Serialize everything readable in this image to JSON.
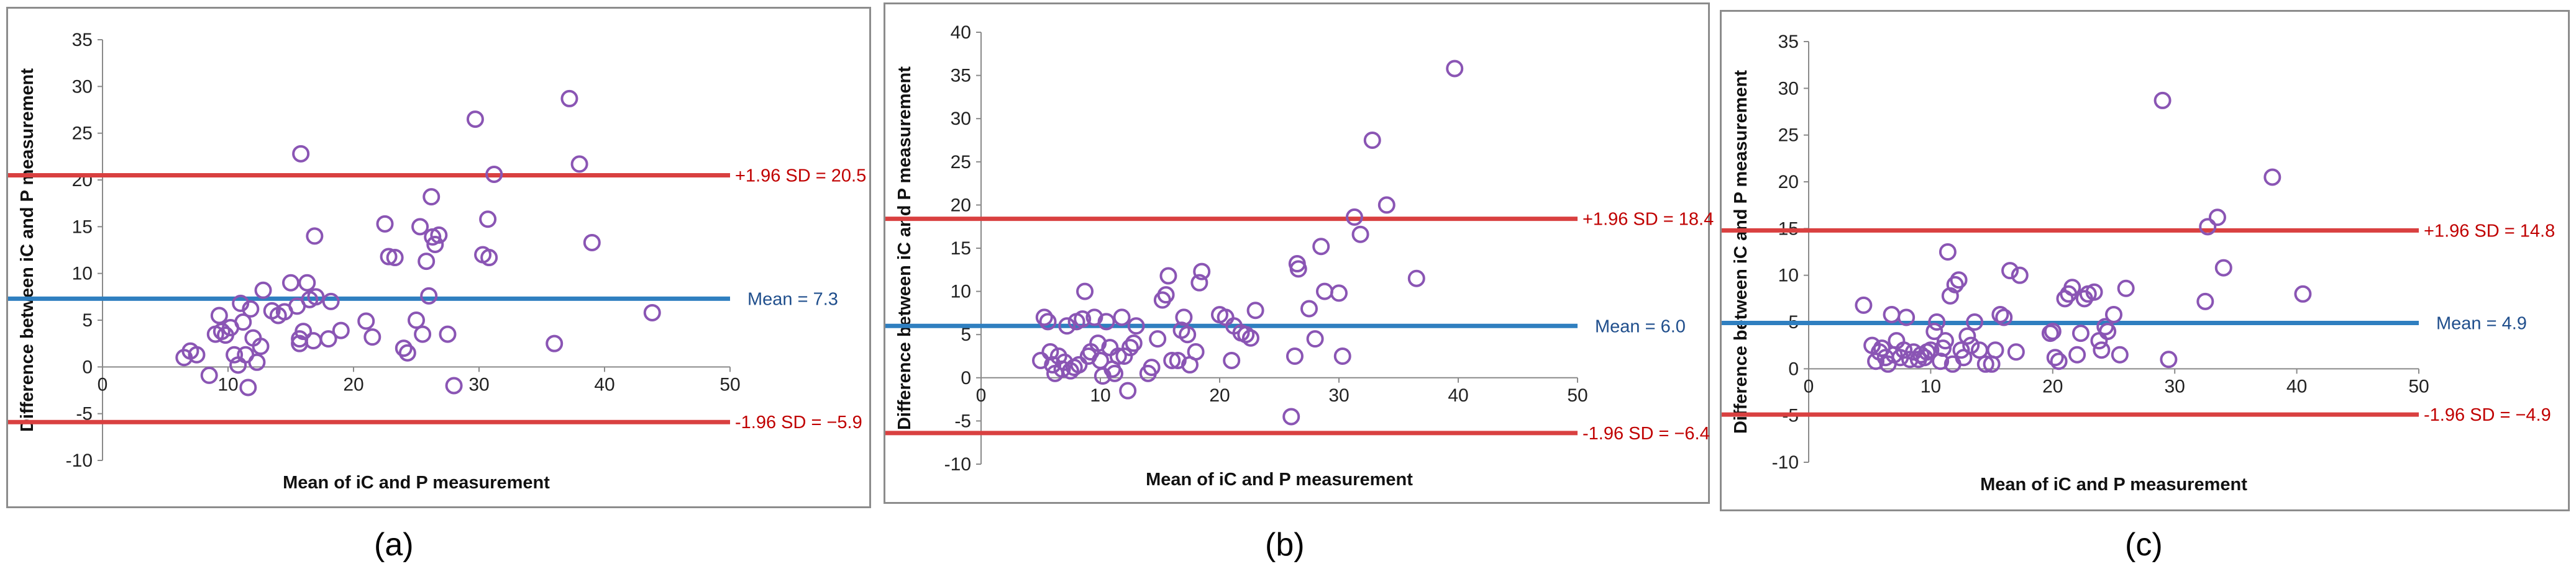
{
  "figure": {
    "captions": [
      "(a)",
      "(b)",
      "(c)"
    ]
  },
  "colors": {
    "points": "#8a55b4",
    "mean_line": "#2f7fc0",
    "limit_line": "#d94040",
    "mean_text": "#1f4e8c",
    "limit_text": "#c00000"
  },
  "chart_data": [
    {
      "type": "scatter",
      "panel": "a",
      "xlabel": "Mean of iC and P measurement",
      "ylabel": "Difference between iC and P measurement",
      "xlim": [
        0,
        50
      ],
      "ylim": [
        -10,
        35
      ],
      "xticks": [
        0,
        10,
        20,
        30,
        40,
        50
      ],
      "yticks": [
        -10,
        -5,
        0,
        5,
        10,
        15,
        20,
        25,
        30,
        35
      ],
      "mean": 7.3,
      "upper_loa": 20.5,
      "lower_loa": -5.9,
      "mean_label": "Mean = 7.3",
      "upper_label": "+1.96 SD = 20.5",
      "lower_label": "-1.96 SD = −5.9",
      "points": [
        [
          6.5,
          1.0
        ],
        [
          7.0,
          1.7
        ],
        [
          7.5,
          1.3
        ],
        [
          8.5,
          -0.9
        ],
        [
          9.0,
          3.5
        ],
        [
          9.3,
          5.5
        ],
        [
          9.5,
          3.8
        ],
        [
          9.8,
          3.4
        ],
        [
          10.2,
          4.2
        ],
        [
          10.5,
          1.3
        ],
        [
          10.8,
          0.2
        ],
        [
          11.0,
          6.8
        ],
        [
          11.2,
          4.8
        ],
        [
          11.4,
          1.3
        ],
        [
          11.6,
          -2.2
        ],
        [
          11.8,
          6.2
        ],
        [
          12.0,
          3.1
        ],
        [
          12.3,
          0.5
        ],
        [
          12.6,
          2.2
        ],
        [
          12.8,
          8.2
        ],
        [
          13.5,
          6.0
        ],
        [
          14.0,
          5.5
        ],
        [
          14.5,
          5.9
        ],
        [
          15.0,
          9.0
        ],
        [
          15.5,
          6.5
        ],
        [
          15.7,
          3.0
        ],
        [
          15.7,
          2.5
        ],
        [
          15.8,
          22.8
        ],
        [
          16.0,
          3.8
        ],
        [
          16.3,
          9.0
        ],
        [
          16.5,
          7.2
        ],
        [
          16.8,
          2.8
        ],
        [
          16.9,
          14.0
        ],
        [
          17.0,
          7.5
        ],
        [
          18.0,
          3.0
        ],
        [
          18.2,
          7.0
        ],
        [
          19.0,
          3.9
        ],
        [
          21.0,
          4.9
        ],
        [
          21.5,
          3.2
        ],
        [
          22.5,
          15.3
        ],
        [
          22.8,
          11.8
        ],
        [
          23.3,
          11.7
        ],
        [
          24.0,
          2.0
        ],
        [
          24.3,
          1.5
        ],
        [
          25.0,
          5.0
        ],
        [
          25.3,
          15.0
        ],
        [
          25.5,
          3.5
        ],
        [
          25.8,
          11.3
        ],
        [
          26.0,
          7.6
        ],
        [
          26.2,
          18.2
        ],
        [
          26.3,
          13.9
        ],
        [
          26.5,
          13.1
        ],
        [
          26.8,
          14.1
        ],
        [
          27.5,
          3.5
        ],
        [
          28.0,
          -2.0
        ],
        [
          29.7,
          26.5
        ],
        [
          30.3,
          12.0
        ],
        [
          30.7,
          15.8
        ],
        [
          30.8,
          11.7
        ],
        [
          31.2,
          20.6
        ],
        [
          36.0,
          2.5
        ],
        [
          37.2,
          28.7
        ],
        [
          38.0,
          21.7
        ],
        [
          39.0,
          13.3
        ],
        [
          43.8,
          5.8
        ]
      ]
    },
    {
      "type": "scatter",
      "panel": "b",
      "xlabel": "Mean of iC and P measurement",
      "ylabel": "Difference between iC and P measurement",
      "xlim": [
        0,
        50
      ],
      "ylim": [
        -10,
        40
      ],
      "xticks": [
        0,
        10,
        20,
        30,
        40,
        50
      ],
      "yticks": [
        -10,
        -5,
        0,
        5,
        10,
        15,
        20,
        25,
        30,
        35,
        40
      ],
      "mean": 6.0,
      "upper_loa": 18.4,
      "lower_loa": -6.4,
      "mean_label": "Mean = 6.0",
      "upper_label": "+1.96 SD = 18.4",
      "lower_label": "-1.96 SD = −6.4",
      "points": [
        [
          5.0,
          2.0
        ],
        [
          5.3,
          7.0
        ],
        [
          5.6,
          6.5
        ],
        [
          5.8,
          3.0
        ],
        [
          6.0,
          1.5
        ],
        [
          6.2,
          0.5
        ],
        [
          6.5,
          2.5
        ],
        [
          6.8,
          1.0
        ],
        [
          7.0,
          1.8
        ],
        [
          7.2,
          6.0
        ],
        [
          7.5,
          0.8
        ],
        [
          7.8,
          1.2
        ],
        [
          8.0,
          6.5
        ],
        [
          8.2,
          1.5
        ],
        [
          8.5,
          6.8
        ],
        [
          8.7,
          10.0
        ],
        [
          9.0,
          2.5
        ],
        [
          9.2,
          3.0
        ],
        [
          9.5,
          7.0
        ],
        [
          9.8,
          4.0
        ],
        [
          10.0,
          2.0
        ],
        [
          10.2,
          0.2
        ],
        [
          10.5,
          6.5
        ],
        [
          10.8,
          3.5
        ],
        [
          11.0,
          1.0
        ],
        [
          11.2,
          0.5
        ],
        [
          11.5,
          2.5
        ],
        [
          11.8,
          7.0
        ],
        [
          12.0,
          2.5
        ],
        [
          12.3,
          -1.5
        ],
        [
          12.5,
          3.5
        ],
        [
          12.8,
          4.0
        ],
        [
          13.0,
          6.0
        ],
        [
          14.0,
          0.5
        ],
        [
          14.3,
          1.2
        ],
        [
          14.8,
          4.5
        ],
        [
          15.2,
          9.0
        ],
        [
          15.5,
          9.6
        ],
        [
          15.7,
          11.8
        ],
        [
          16.0,
          2.0
        ],
        [
          16.5,
          2.0
        ],
        [
          16.8,
          5.5
        ],
        [
          17.0,
          7.0
        ],
        [
          17.3,
          5.0
        ],
        [
          17.5,
          1.5
        ],
        [
          18.0,
          3.0
        ],
        [
          18.3,
          11.0
        ],
        [
          18.5,
          12.3
        ],
        [
          20.0,
          7.3
        ],
        [
          20.5,
          7.0
        ],
        [
          21.0,
          2.0
        ],
        [
          21.2,
          6.0
        ],
        [
          21.8,
          5.2
        ],
        [
          22.2,
          5.0
        ],
        [
          22.6,
          4.6
        ],
        [
          23.0,
          7.8
        ],
        [
          26.0,
          -4.5
        ],
        [
          26.3,
          2.5
        ],
        [
          26.5,
          13.2
        ],
        [
          26.6,
          12.6
        ],
        [
          27.5,
          8.0
        ],
        [
          28.0,
          4.5
        ],
        [
          28.5,
          15.2
        ],
        [
          28.8,
          10.0
        ],
        [
          30.0,
          9.8
        ],
        [
          30.3,
          2.5
        ],
        [
          31.3,
          18.6
        ],
        [
          31.8,
          16.6
        ],
        [
          32.8,
          27.5
        ],
        [
          34.0,
          20.0
        ],
        [
          36.5,
          11.5
        ],
        [
          39.7,
          35.8
        ]
      ]
    },
    {
      "type": "scatter",
      "panel": "c",
      "xlabel": "Mean of iC and P measurement",
      "ylabel": "Difference between iC and P measurement",
      "xlim": [
        0,
        50
      ],
      "ylim": [
        -10,
        35
      ],
      "xticks": [
        0,
        10,
        20,
        30,
        40,
        50
      ],
      "yticks": [
        -10,
        -5,
        0,
        5,
        10,
        15,
        20,
        25,
        30,
        35
      ],
      "mean": 4.9,
      "upper_loa": 14.8,
      "lower_loa": -4.9,
      "mean_label": "Mean = 4.9",
      "upper_label": "+1.96 SD = 14.8",
      "lower_label": "-1.96 SD = −4.9",
      "points": [
        [
          4.5,
          6.8
        ],
        [
          5.2,
          2.5
        ],
        [
          5.5,
          0.8
        ],
        [
          5.8,
          1.8
        ],
        [
          6.0,
          2.2
        ],
        [
          6.3,
          1.2
        ],
        [
          6.5,
          0.5
        ],
        [
          6.8,
          5.8
        ],
        [
          7.0,
          1.5
        ],
        [
          7.2,
          3.0
        ],
        [
          7.5,
          1.2
        ],
        [
          7.8,
          2.0
        ],
        [
          8.0,
          5.5
        ],
        [
          8.3,
          1.0
        ],
        [
          8.6,
          1.8
        ],
        [
          9.0,
          1.0
        ],
        [
          9.2,
          1.5
        ],
        [
          9.5,
          1.2
        ],
        [
          9.7,
          1.8
        ],
        [
          10.0,
          2.0
        ],
        [
          10.3,
          4.0
        ],
        [
          10.5,
          5.0
        ],
        [
          10.8,
          0.8
        ],
        [
          11.0,
          2.2
        ],
        [
          11.2,
          3.0
        ],
        [
          11.4,
          12.5
        ],
        [
          11.6,
          7.8
        ],
        [
          11.8,
          0.5
        ],
        [
          12.0,
          9.0
        ],
        [
          12.3,
          9.5
        ],
        [
          12.5,
          2.0
        ],
        [
          12.7,
          1.2
        ],
        [
          13.0,
          3.5
        ],
        [
          13.3,
          2.5
        ],
        [
          13.6,
          5.0
        ],
        [
          14.0,
          2.0
        ],
        [
          14.5,
          0.5
        ],
        [
          15.0,
          0.5
        ],
        [
          15.3,
          2.0
        ],
        [
          15.7,
          5.8
        ],
        [
          16.0,
          5.5
        ],
        [
          16.5,
          10.5
        ],
        [
          17.0,
          1.8
        ],
        [
          17.3,
          10.0
        ],
        [
          19.8,
          3.8
        ],
        [
          20.0,
          4.0
        ],
        [
          20.2,
          1.2
        ],
        [
          20.5,
          0.8
        ],
        [
          21.0,
          7.5
        ],
        [
          21.3,
          8.0
        ],
        [
          21.6,
          8.7
        ],
        [
          22.0,
          1.5
        ],
        [
          22.3,
          3.8
        ],
        [
          22.6,
          7.5
        ],
        [
          22.9,
          8.0
        ],
        [
          23.4,
          8.2
        ],
        [
          23.8,
          3.0
        ],
        [
          24.0,
          2.0
        ],
        [
          24.3,
          4.5
        ],
        [
          24.5,
          4.0
        ],
        [
          25.0,
          5.8
        ],
        [
          25.5,
          1.5
        ],
        [
          26.0,
          8.6
        ],
        [
          29.0,
          28.7
        ],
        [
          29.5,
          1.0
        ],
        [
          32.5,
          7.2
        ],
        [
          32.7,
          15.2
        ],
        [
          33.5,
          16.2
        ],
        [
          34.0,
          10.8
        ],
        [
          38.0,
          20.5
        ],
        [
          40.5,
          8.0
        ]
      ]
    }
  ]
}
